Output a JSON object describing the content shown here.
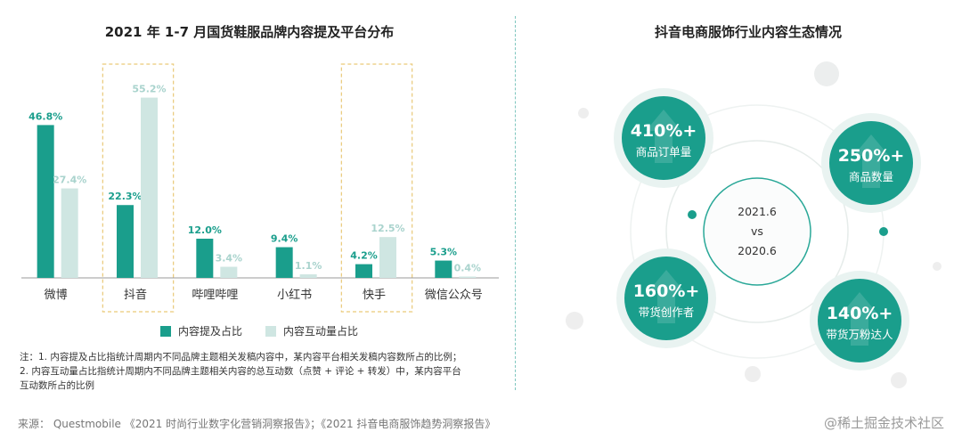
{
  "left_chart": {
    "title": "2021 年 1-7 月国货鞋服品牌内容提及平台分布",
    "chart_data": {
      "type": "bar",
      "categories": [
        "微博",
        "抖音",
        "哔哩哔哩",
        "小红书",
        "快手",
        "微信公众号"
      ],
      "series": [
        {
          "name": "内容提及占比",
          "values": [
            46.8,
            22.3,
            12.0,
            9.4,
            4.2,
            5.3
          ],
          "labels": [
            "46.8%",
            "22.3%",
            "12.0%",
            "9.4%",
            "4.2%",
            "5.3%"
          ],
          "color": "#1a9e8c"
        },
        {
          "name": "内容互动量占比",
          "values": [
            27.4,
            55.2,
            3.4,
            1.1,
            12.5,
            0.4
          ],
          "labels": [
            "27.4%",
            "55.2%",
            "3.4%",
            "1.1%",
            "12.5%",
            "0.4%"
          ],
          "color": "#cfe6e2"
        }
      ],
      "highlighted_categories": [
        "抖音",
        "快手"
      ],
      "ylim": [
        0,
        60
      ]
    },
    "legend": [
      {
        "label": "内容提及占比",
        "color": "#1a9e8c"
      },
      {
        "label": "内容互动量占比",
        "color": "#cfe6e2"
      }
    ],
    "notes": [
      "注：1. 内容提及占比指统计周期内不同品牌主题相关发稿内容中，某内容平台相关发稿内容数所占的比例；",
      "2. 内容互动量占比指统计周期内不同品牌主题相关内容的总互动数（点赞 + 评论 + 转发）中，某内容平台",
      "互动数所占的比例"
    ]
  },
  "right_chart": {
    "title": "抖音电商服饰行业内容生态情况",
    "center": {
      "line1": "2021.6",
      "line2": "vs",
      "line3": "2020.6"
    },
    "metrics": [
      {
        "value": "410%+",
        "label": "商品订单量"
      },
      {
        "value": "250%+",
        "label": "商品数量"
      },
      {
        "value": "160%+",
        "label": "带货创作者"
      },
      {
        "value": "140%+",
        "label": "带货万粉达人"
      }
    ],
    "accent_color": "#1a9e8c"
  },
  "footer": {
    "source": "来源： Questmobile 《2021 时尚行业数字化营销洞察报告》；《2021 抖音电商服饰趋势洞察报告》",
    "watermark": "@稀土掘金技术社区"
  }
}
